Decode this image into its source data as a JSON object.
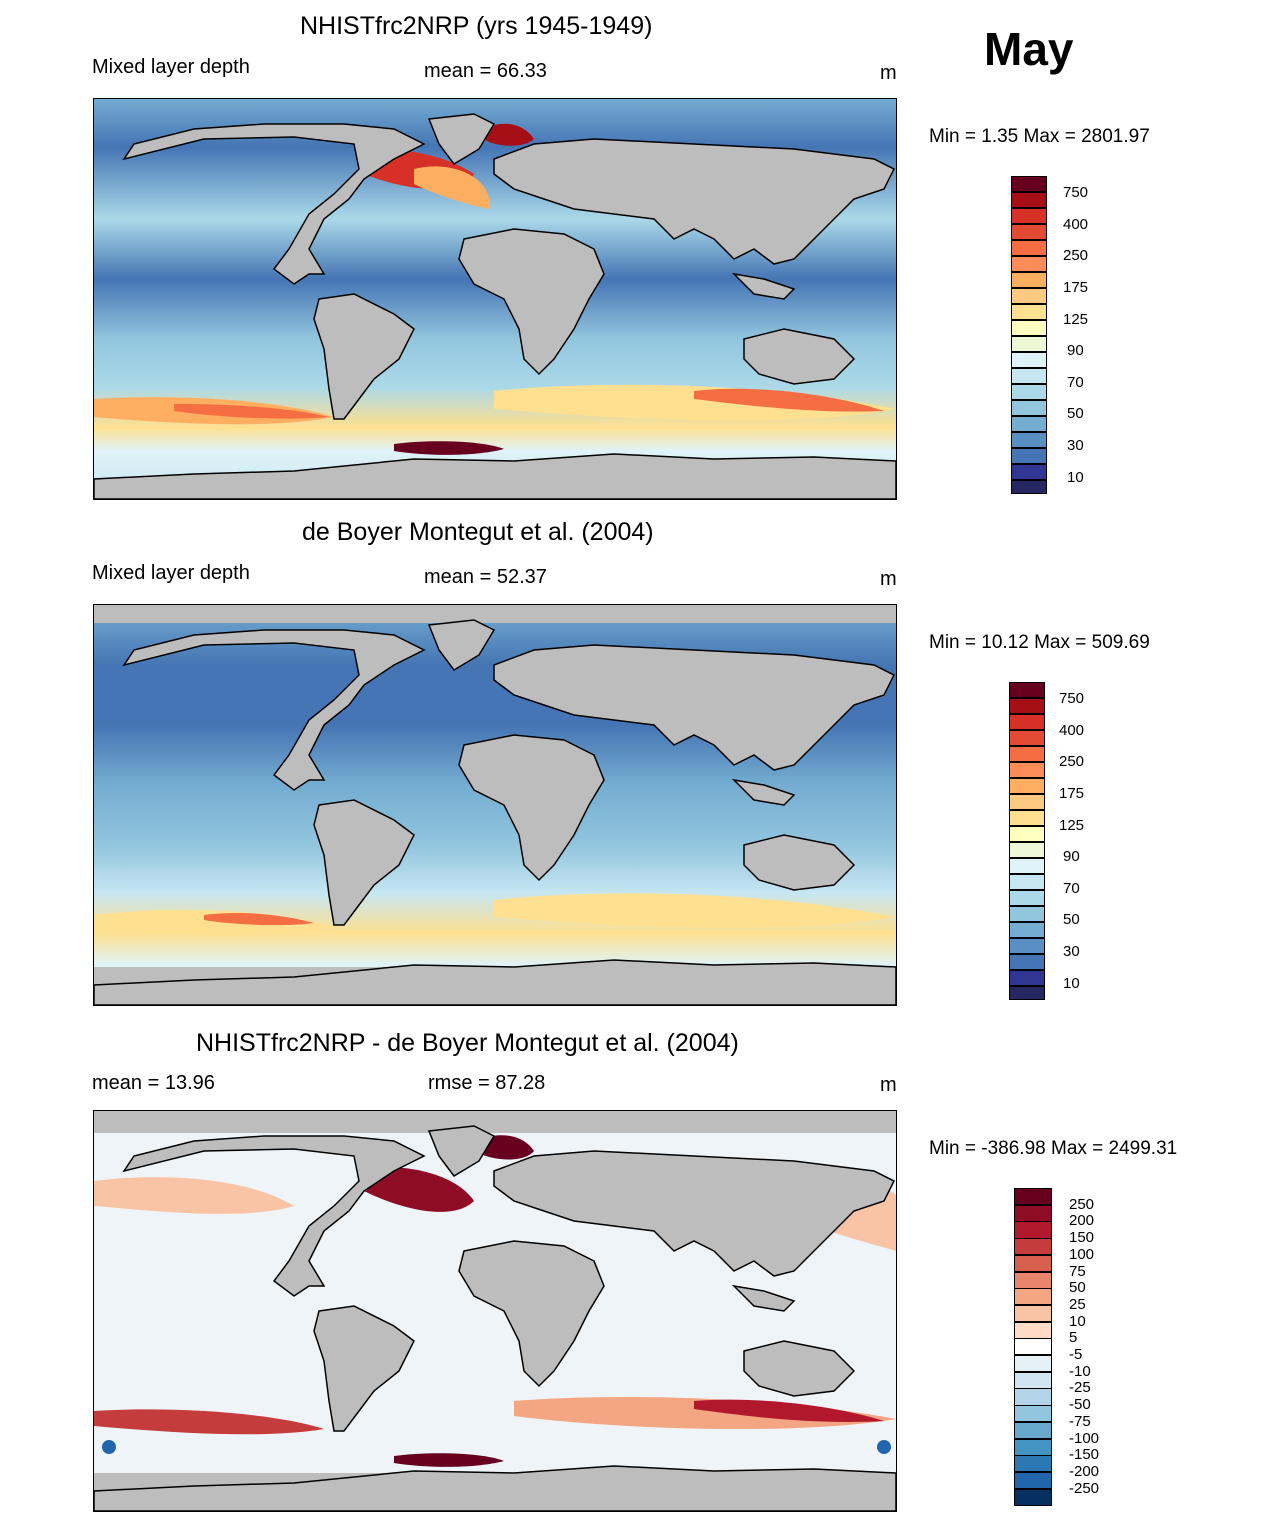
{
  "month": "May",
  "panels": [
    {
      "title": "NHISTfrc2NRP (yrs 1945-1949)",
      "left_label": "Mixed layer depth",
      "center_label": "mean =  66.33",
      "right_label": "m",
      "minmax": "Min =    1.35 Max = 2801.97",
      "colorbar": {
        "labels": [
          "750",
          "400",
          "250",
          "175",
          "125",
          "90",
          "70",
          "50",
          "30",
          "10"
        ],
        "colors": [
          "#67001f",
          "#a50f15",
          "#d73027",
          "#f46d43",
          "#fdae61",
          "#fee090",
          "#ffffbf",
          "#e0f3f8",
          "#c6e6f2",
          "#abd9e9",
          "#92c5de",
          "#74add1",
          "#4575b4",
          "#313695",
          "#262660"
        ]
      }
    },
    {
      "title": "de Boyer Montegut et al. (2004)",
      "left_label": "Mixed layer depth",
      "center_label": "mean =  52.37",
      "right_label": "m",
      "minmax": "Min =  10.12 Max = 509.69",
      "colorbar": {
        "labels": [
          "750",
          "400",
          "250",
          "175",
          "125",
          "90",
          "70",
          "50",
          "30",
          "10"
        ],
        "colors": [
          "#67001f",
          "#a50f15",
          "#d73027",
          "#f46d43",
          "#fdae61",
          "#fee090",
          "#ffffbf",
          "#e0f3f8",
          "#c6e6f2",
          "#abd9e9",
          "#92c5de",
          "#74add1",
          "#4575b4",
          "#313695",
          "#262660"
        ]
      }
    },
    {
      "title": "NHISTfrc2NRP - de Boyer Montegut et al. (2004)",
      "left_label": "mean =  13.96",
      "center_label": "rmse =  87.28",
      "right_label": "m",
      "minmax": "Min = -386.98 Max = 2499.31",
      "colorbar": {
        "labels": [
          "250",
          "200",
          "150",
          "100",
          "75",
          "50",
          "25",
          "10",
          "5",
          "-5",
          "-10",
          "-25",
          "-50",
          "-75",
          "-100",
          "-150",
          "-200",
          "-250"
        ],
        "colors": [
          "#67001f",
          "#8e0c25",
          "#b2182b",
          "#c43c3c",
          "#d6604d",
          "#e8856a",
          "#f4a582",
          "#f9c4a6",
          "#fddbc7",
          "#ffffff",
          "#e6f0f7",
          "#d1e5f0",
          "#b3d3e8",
          "#92c5de",
          "#6aa9cf",
          "#4393c3",
          "#2c78b4",
          "#2166ac",
          "#053061"
        ]
      }
    }
  ]
}
